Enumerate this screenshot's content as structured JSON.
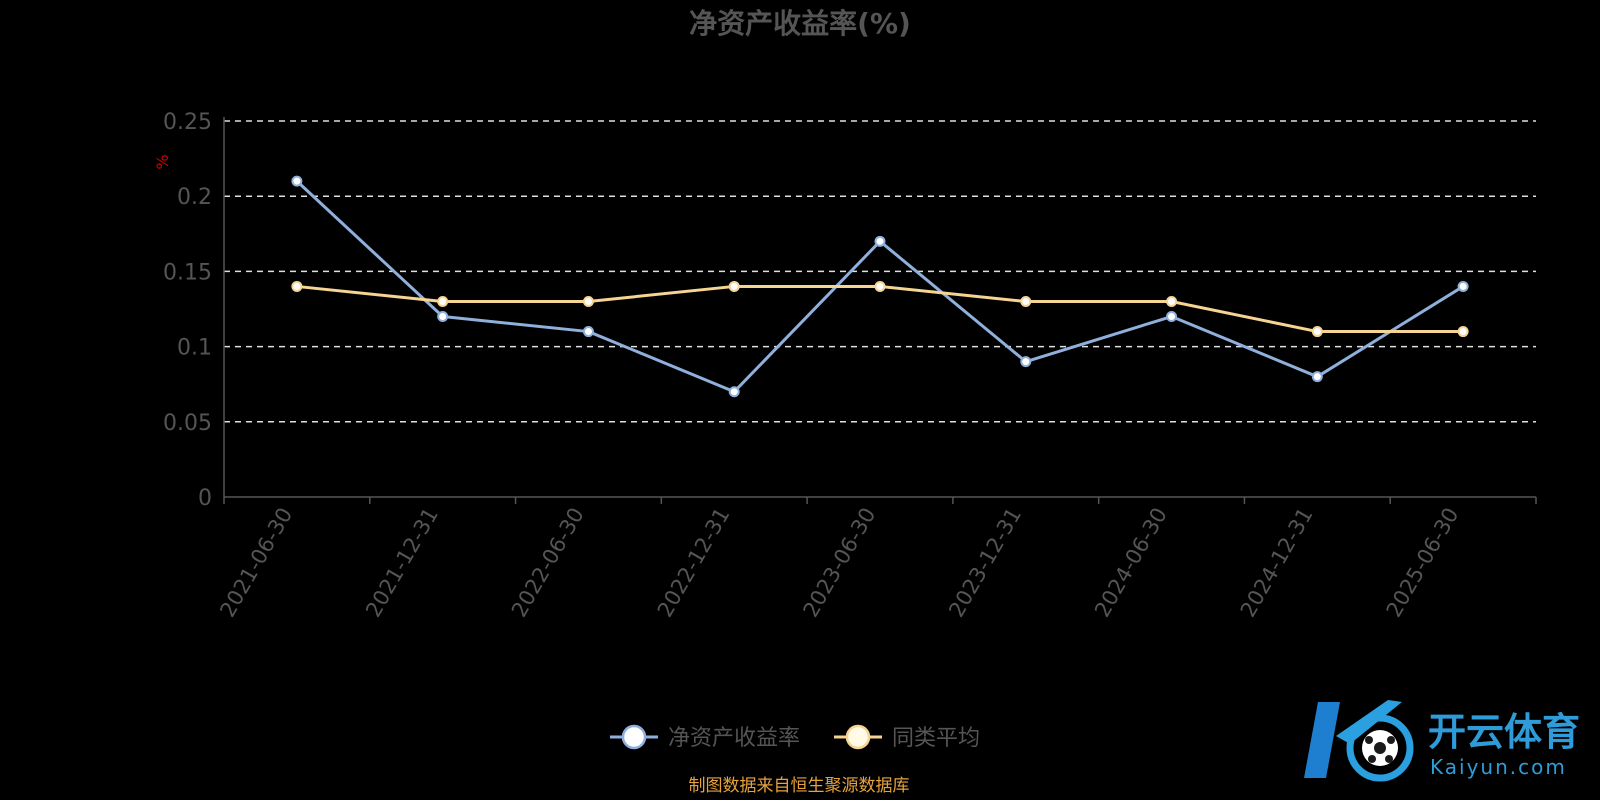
{
  "chart_data": {
    "type": "line",
    "title": "净资产收益率(%)",
    "ylabel": "%",
    "xlabel": "",
    "categories": [
      "2021-06-30",
      "2021-12-31",
      "2022-06-30",
      "2022-12-31",
      "2023-06-30",
      "2023-12-31",
      "2024-06-30",
      "2024-12-31",
      "2025-06-30"
    ],
    "ylim": [
      0,
      0.25
    ],
    "yticks": [
      "0",
      "0.05",
      "0.1",
      "0.15",
      "0.2",
      "0.25"
    ],
    "grid": true,
    "legend_position": "bottom",
    "series": [
      {
        "name": "净资产收益率",
        "color": "#8fb0dc",
        "values": [
          0.21,
          0.12,
          0.11,
          0.07,
          0.17,
          0.09,
          0.12,
          0.08,
          0.14
        ]
      },
      {
        "name": "同类平均",
        "color": "#f6d491",
        "values": [
          0.14,
          0.13,
          0.13,
          0.14,
          0.14,
          0.13,
          0.13,
          0.11,
          0.11
        ]
      }
    ]
  },
  "source_note": "制图数据来自恒生聚源数据库",
  "watermark": {
    "name_cn": "开云体育",
    "name_en": "Kaiyun.com",
    "icon": "kaiyun-logo-icon"
  }
}
